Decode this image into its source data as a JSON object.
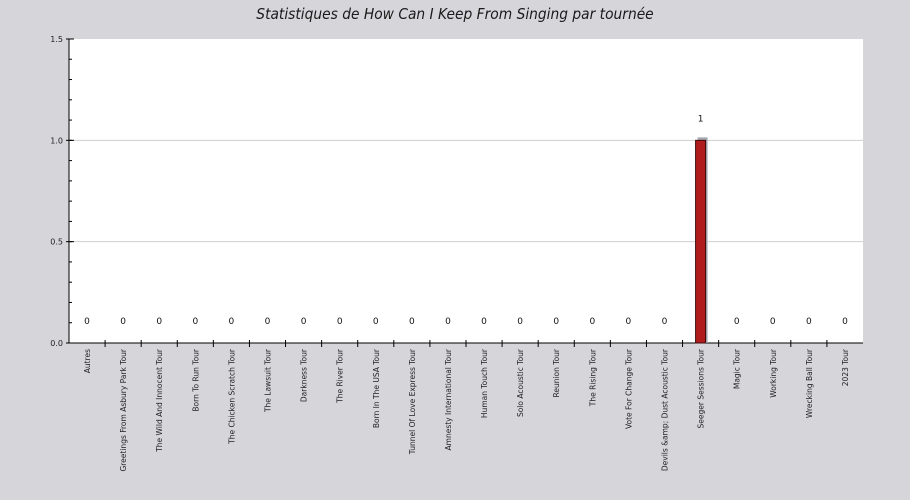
{
  "chart_data": {
    "type": "bar",
    "title": "Statistiques de How Can I Keep From Singing par tournée",
    "xlabel": "",
    "ylabel": "",
    "ylim": [
      0,
      1.5
    ],
    "yticks": [
      "0.0",
      "0.5",
      "1.0",
      "1.5"
    ],
    "grid": true,
    "categories": [
      "Autres",
      "Greetings From Asbury Park Tour",
      "The Wild And Innocent Tour",
      "Born To Run Tour",
      "The Chicken Scratch Tour",
      "The Lawsuit Tour",
      "Darkness Tour",
      "The River Tour",
      "Born In The USA Tour",
      "Tunnel Of Love Express Tour",
      "Amnesty International Tour",
      "Human Touch Tour",
      "Solo Acoustic Tour",
      "Reunion Tour",
      "The Rising Tour",
      "Vote For Change Tour",
      "Devils &amp; Dust Acoustic Tour",
      "Seeger Sessions Tour",
      "Magic Tour",
      "Working Tour",
      "Wrecking Ball Tour",
      "2023 Tour"
    ],
    "values": [
      0,
      0,
      0,
      0,
      0,
      0,
      0,
      0,
      0,
      0,
      0,
      0,
      0,
      0,
      0,
      0,
      0,
      1,
      0,
      0,
      0,
      0
    ],
    "data_labels": [
      "0",
      "0",
      "0",
      "0",
      "0",
      "0",
      "0",
      "0",
      "0",
      "0",
      "0",
      "0",
      "0",
      "0",
      "0",
      "0",
      "0",
      "1",
      "0",
      "0",
      "0",
      "0"
    ],
    "colors": {
      "bar": "#b01c1c",
      "bar_stroke": "#3a0a0a",
      "bar_shadow": "#a8a8b0",
      "grid": "#cfcfcf",
      "plot_bg": "#ffffff"
    }
  }
}
